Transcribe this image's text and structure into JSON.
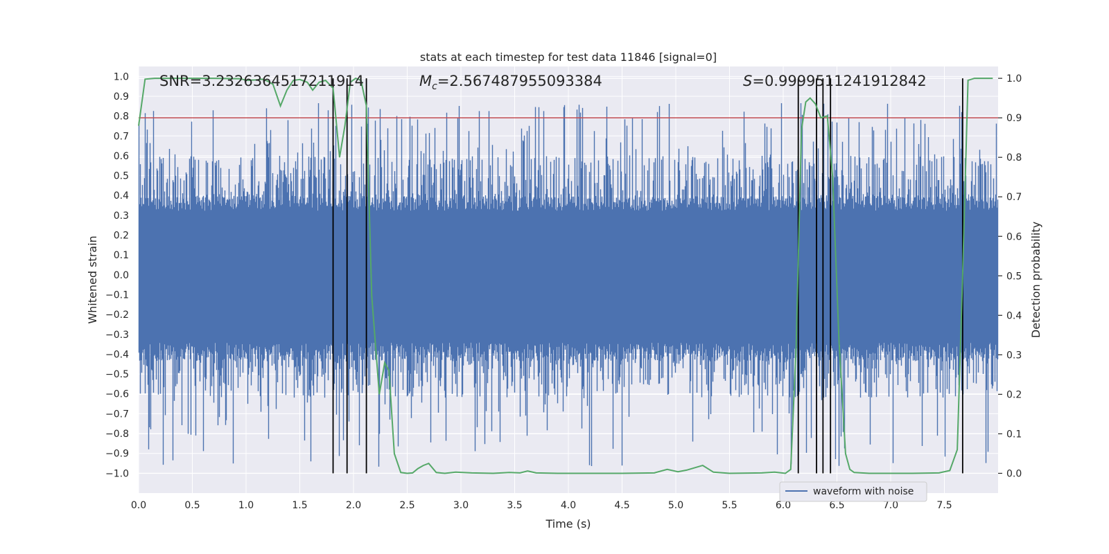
{
  "chart_data": {
    "type": "line",
    "title": "stats at each timestep for test data 11846 [signal=0]",
    "xlabel": "Time (s)",
    "ylabel_left": "Whitened strain",
    "ylabel_right": "Detection probability",
    "xlim": [
      0.0,
      8.0
    ],
    "ylim_left": [
      -1.1,
      1.05
    ],
    "ylim_right": [
      -0.05,
      1.03
    ],
    "x_ticks": [
      "0.0",
      "0.5",
      "1.0",
      "1.5",
      "2.0",
      "2.5",
      "3.0",
      "3.5",
      "4.0",
      "4.5",
      "5.0",
      "5.5",
      "6.0",
      "6.5",
      "7.0",
      "7.5"
    ],
    "y_ticks_left": [
      "1.0",
      "0.9",
      "0.8",
      "0.7",
      "0.6",
      "0.5",
      "0.4",
      "0.3",
      "0.2",
      "0.1",
      "0.0",
      "−0.1",
      "−0.2",
      "−0.3",
      "−0.4",
      "−0.5",
      "−0.6",
      "−0.7",
      "−0.8",
      "−0.9",
      "−1.0"
    ],
    "y_ticks_right": [
      "1.0",
      "0.9",
      "0.8",
      "0.7",
      "0.6",
      "0.5",
      "0.4",
      "0.3",
      "0.2",
      "0.1",
      "0.0"
    ],
    "annotations": {
      "snr": "SNR=3.2326364517211914",
      "mc_symbol": "M",
      "mc_subscript": "c",
      "mc_value": "=2.567487955093384",
      "s_symbol": "S",
      "s_value": "=0.9999511241912842"
    },
    "legend": {
      "label": "waveform with noise",
      "position": "lower-right"
    },
    "threshold": 0.9,
    "series": [
      {
        "name": "waveform with noise",
        "kind": "noise",
        "color": "#4c72b0",
        "body_amplitude": 0.38,
        "peak_amplitude_max": 0.87,
        "trough_amplitude_min": -0.97
      },
      {
        "name": "Detection probability",
        "kind": "line",
        "color": "#55a868",
        "points": [
          [
            0.0,
            0.88
          ],
          [
            0.06,
            0.998
          ],
          [
            0.15,
            1.0
          ],
          [
            0.4,
            1.0
          ],
          [
            0.7,
            1.0
          ],
          [
            0.95,
            0.999
          ],
          [
            1.0,
            0.995
          ],
          [
            1.1,
            0.996
          ],
          [
            1.15,
            0.998
          ],
          [
            1.2,
            0.993
          ],
          [
            1.25,
            0.985
          ],
          [
            1.32,
            0.93
          ],
          [
            1.38,
            0.97
          ],
          [
            1.44,
            0.995
          ],
          [
            1.5,
            0.997
          ],
          [
            1.57,
            0.99
          ],
          [
            1.62,
            0.97
          ],
          [
            1.68,
            0.99
          ],
          [
            1.74,
            0.995
          ],
          [
            1.81,
            0.975
          ],
          [
            1.87,
            0.8
          ],
          [
            1.92,
            0.88
          ],
          [
            1.97,
            0.99
          ],
          [
            2.02,
            1.0
          ],
          [
            2.07,
            0.995
          ],
          [
            2.12,
            0.93
          ],
          [
            2.17,
            0.45
          ],
          [
            2.24,
            0.2
          ],
          [
            2.29,
            0.28
          ],
          [
            2.33,
            0.26
          ],
          [
            2.38,
            0.05
          ],
          [
            2.44,
            0.002
          ],
          [
            2.5,
            0.0
          ],
          [
            2.55,
            0.001
          ],
          [
            2.6,
            0.012
          ],
          [
            2.65,
            0.02
          ],
          [
            2.7,
            0.025
          ],
          [
            2.77,
            0.002
          ],
          [
            2.85,
            0.0
          ],
          [
            2.95,
            0.003
          ],
          [
            3.1,
            0.001
          ],
          [
            3.3,
            0.0
          ],
          [
            3.45,
            0.002
          ],
          [
            3.55,
            0.001
          ],
          [
            3.62,
            0.006
          ],
          [
            3.7,
            0.001
          ],
          [
            3.9,
            0.0
          ],
          [
            4.5,
            0.0
          ],
          [
            4.8,
            0.001
          ],
          [
            4.92,
            0.01
          ],
          [
            5.02,
            0.004
          ],
          [
            5.1,
            0.008
          ],
          [
            5.25,
            0.02
          ],
          [
            5.35,
            0.003
          ],
          [
            5.5,
            0.0
          ],
          [
            5.8,
            0.001
          ],
          [
            5.92,
            0.003
          ],
          [
            6.02,
            0.0
          ],
          [
            6.07,
            0.01
          ],
          [
            6.12,
            0.32
          ],
          [
            6.17,
            0.87
          ],
          [
            6.21,
            0.94
          ],
          [
            6.25,
            0.95
          ],
          [
            6.3,
            0.935
          ],
          [
            6.35,
            0.9
          ],
          [
            6.41,
            0.905
          ],
          [
            6.46,
            0.75
          ],
          [
            6.52,
            0.33
          ],
          [
            6.58,
            0.05
          ],
          [
            6.62,
            0.01
          ],
          [
            6.66,
            0.002
          ],
          [
            6.8,
            0.0
          ],
          [
            7.2,
            0.0
          ],
          [
            7.45,
            0.001
          ],
          [
            7.55,
            0.007
          ],
          [
            7.62,
            0.06
          ],
          [
            7.67,
            0.5
          ],
          [
            7.72,
            0.995
          ],
          [
            7.78,
            1.0
          ],
          [
            7.95,
            1.0
          ]
        ]
      }
    ],
    "vertical_lines_x": [
      1.81,
      1.94,
      2.12,
      6.14,
      6.31,
      6.37,
      6.44,
      7.67
    ]
  }
}
